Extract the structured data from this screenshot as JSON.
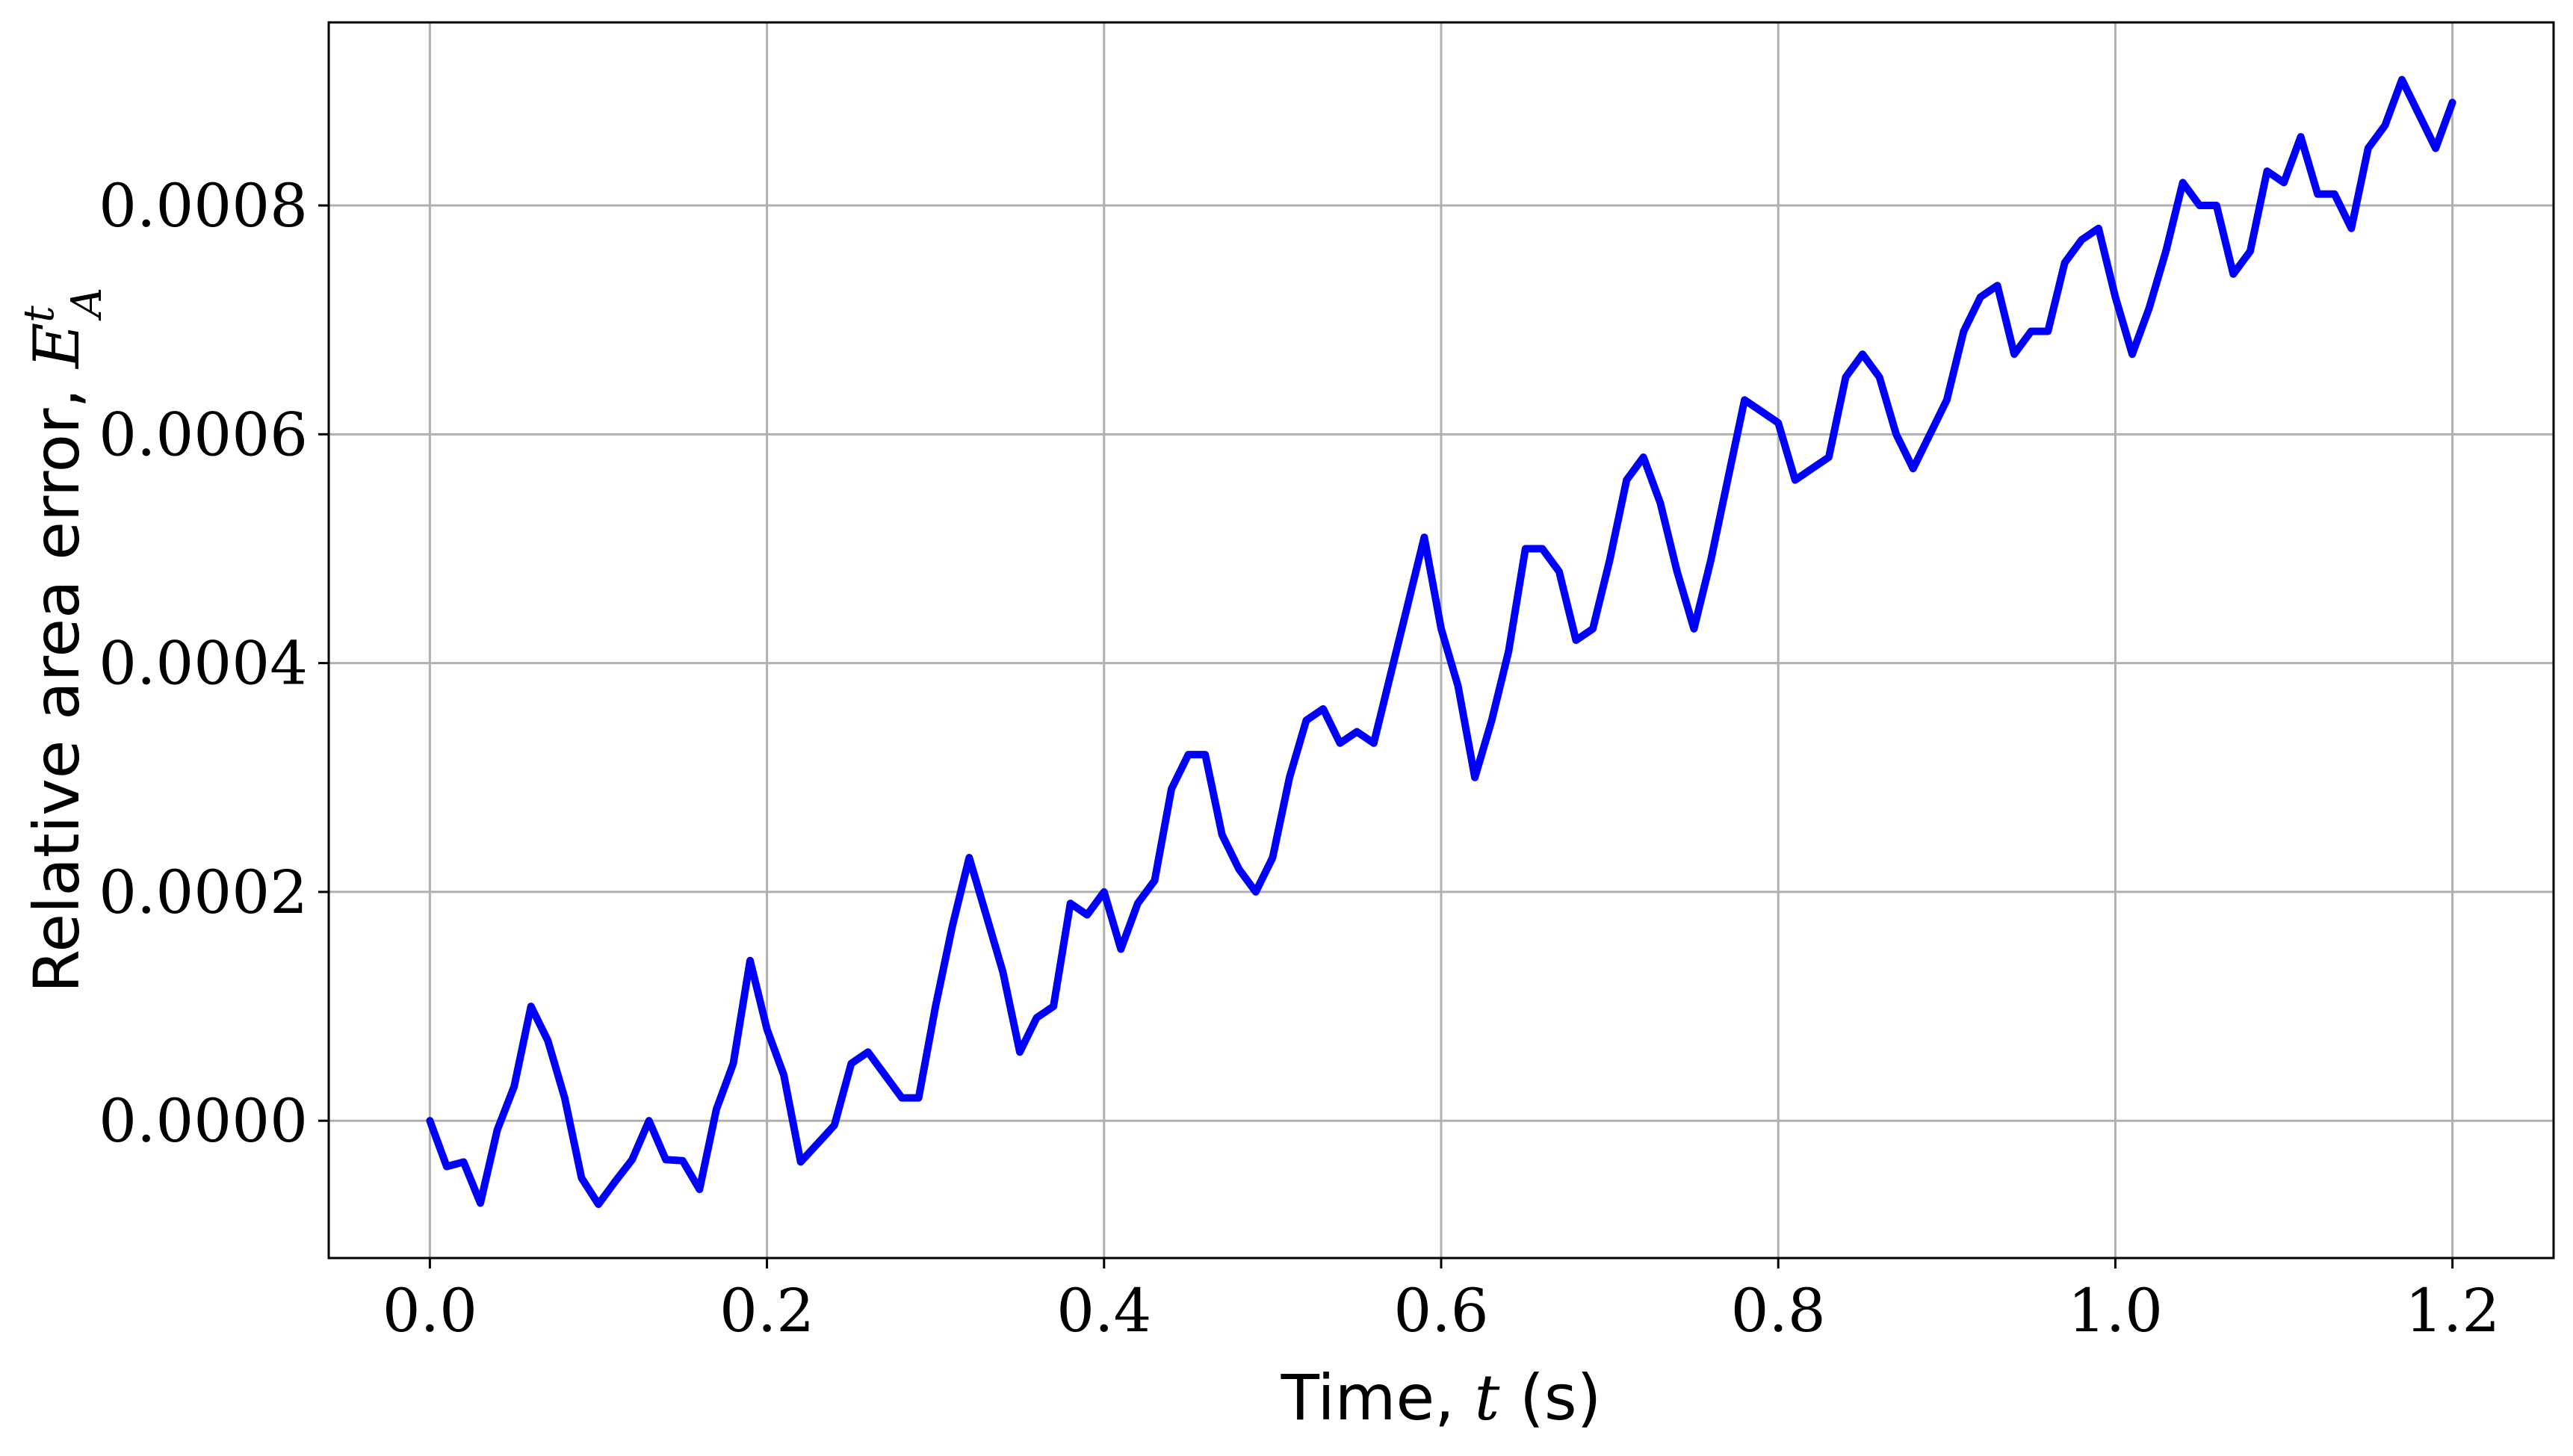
{
  "chart_data": {
    "type": "line",
    "title": "",
    "xlabel": {
      "prefix": "Time, ",
      "symbol": "t",
      "suffix": " (s)"
    },
    "ylabel": {
      "prefix": "Relative area error, ",
      "symbol": "E",
      "superscript": "t",
      "subscript": "A"
    },
    "xlim": [
      -0.06,
      1.26
    ],
    "ylim": [
      -0.00012,
      0.00096
    ],
    "xticks": [
      0.0,
      0.2,
      0.4,
      0.6,
      0.8,
      1.0,
      1.2
    ],
    "xtick_labels": [
      "0.0",
      "0.2",
      "0.4",
      "0.6",
      "0.8",
      "1.0",
      "1.2"
    ],
    "yticks": [
      0.0,
      0.0002,
      0.0004,
      0.0006,
      0.0008
    ],
    "ytick_labels": [
      "0.0000",
      "0.0002",
      "0.0004",
      "0.0006",
      "0.0008"
    ],
    "grid": true,
    "line_color": "#0000ff",
    "series": [
      {
        "x": [
          0.0,
          0.01,
          0.02,
          0.03,
          0.04,
          0.05,
          0.06,
          0.07,
          0.08,
          0.09,
          0.1,
          0.11,
          0.12,
          0.13,
          0.14,
          0.15,
          0.16,
          0.17,
          0.18,
          0.19,
          0.2,
          0.21,
          0.22,
          0.23,
          0.24,
          0.25,
          0.26,
          0.27,
          0.28,
          0.29,
          0.3,
          0.31,
          0.32,
          0.33,
          0.34,
          0.35,
          0.36,
          0.37,
          0.38,
          0.39,
          0.4,
          0.41,
          0.42,
          0.43,
          0.44,
          0.45,
          0.46,
          0.47,
          0.48,
          0.49,
          0.5,
          0.51,
          0.52,
          0.53,
          0.54,
          0.55,
          0.56,
          0.57,
          0.58,
          0.59,
          0.6,
          0.61,
          0.62,
          0.63,
          0.64,
          0.65,
          0.66,
          0.67,
          0.68,
          0.69,
          0.7,
          0.71,
          0.72,
          0.73,
          0.74,
          0.75,
          0.76,
          0.77,
          0.78,
          0.79,
          0.8,
          0.81,
          0.82,
          0.83,
          0.84,
          0.85,
          0.86,
          0.87,
          0.88,
          0.89,
          0.9,
          0.91,
          0.92,
          0.93,
          0.94,
          0.95,
          0.96,
          0.97,
          0.98,
          0.99,
          1.0,
          1.01,
          1.02,
          1.03,
          1.04,
          1.05,
          1.06,
          1.07,
          1.08,
          1.09,
          1.1,
          1.11,
          1.12,
          1.13,
          1.14,
          1.15,
          1.16,
          1.17,
          1.18,
          1.19,
          1.2
        ],
        "y": [
          0.0,
          -4e-05,
          -3.6e-05,
          -7.2e-05,
          -8e-06,
          3e-05,
          0.0001,
          7e-05,
          2e-05,
          -5e-05,
          -7.3e-05,
          -5.3e-05,
          -3.4e-05,
          0.0,
          -3.4e-05,
          -3.5e-05,
          -6e-05,
          1e-05,
          5e-05,
          0.00014,
          8e-05,
          4e-05,
          -3.6e-05,
          -2e-05,
          -4e-06,
          5e-05,
          6e-05,
          4e-05,
          2e-05,
          2e-05,
          0.0001,
          0.00017,
          0.00023,
          0.00018,
          0.00013,
          6e-05,
          9e-05,
          0.0001,
          0.00019,
          0.00018,
          0.0002,
          0.00015,
          0.00019,
          0.00021,
          0.00029,
          0.00032,
          0.00032,
          0.00025,
          0.00022,
          0.0002,
          0.00023,
          0.0003,
          0.00035,
          0.00036,
          0.00033,
          0.00034,
          0.00033,
          0.00039,
          0.00045,
          0.00051,
          0.00043,
          0.00038,
          0.0003,
          0.00035,
          0.00041,
          0.0005,
          0.0005,
          0.00048,
          0.00042,
          0.00043,
          0.00049,
          0.00056,
          0.00058,
          0.00054,
          0.00048,
          0.00043,
          0.00049,
          0.00056,
          0.00063,
          0.00062,
          0.00061,
          0.00056,
          0.00057,
          0.00058,
          0.00065,
          0.00067,
          0.00065,
          0.0006,
          0.00057,
          0.0006,
          0.00063,
          0.00069,
          0.00072,
          0.00073,
          0.00067,
          0.00069,
          0.00069,
          0.00075,
          0.00077,
          0.00078,
          0.00072,
          0.00067,
          0.00071,
          0.00076,
          0.00082,
          0.0008,
          0.0008,
          0.00074,
          0.00076,
          0.00083,
          0.00082,
          0.00086,
          0.00081,
          0.00081,
          0.00078,
          0.00085,
          0.00087,
          0.00091,
          0.00088,
          0.00085,
          0.00089
        ]
      }
    ]
  }
}
